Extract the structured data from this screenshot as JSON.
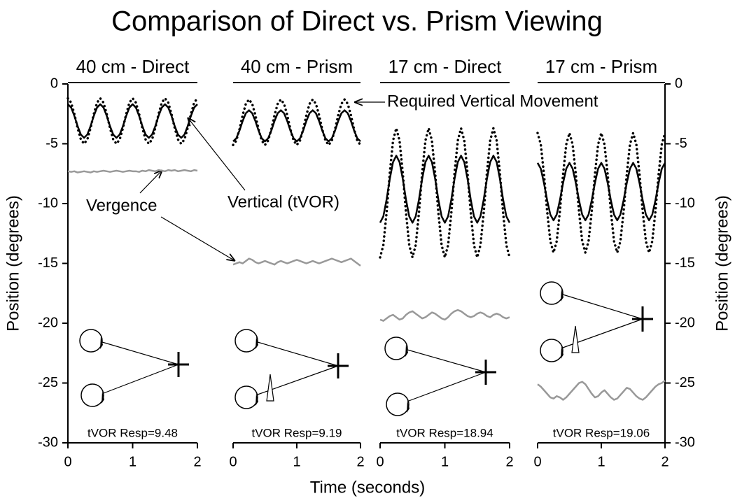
{
  "title": "Comparison of Direct vs. Prism Viewing",
  "xlabel": "Time (seconds)",
  "annotations": [
    "Required Vertical Movement",
    "Vertical (tVOR)",
    "Vergence"
  ],
  "chart_data": [
    {
      "type": "line",
      "title": "40 cm - Direct",
      "ylabel": "Position (degrees)",
      "yaxis": "left",
      "xlim": [
        0,
        2
      ],
      "xticks": [
        0,
        1,
        2
      ],
      "ylim": [
        -30,
        0
      ],
      "yticks": [
        0,
        -5,
        -10,
        -15,
        -20,
        -25,
        -30
      ],
      "annotation": "tVOR Resp=9.48",
      "x": [
        0,
        0.05,
        0.1,
        0.15,
        0.2,
        0.25,
        0.3,
        0.35,
        0.4,
        0.45,
        0.5,
        0.55,
        0.6,
        0.65,
        0.7,
        0.75,
        0.8,
        0.85,
        0.9,
        0.95,
        1,
        1.05,
        1.1,
        1.15,
        1.2,
        1.25,
        1.3,
        1.35,
        1.4,
        1.45,
        1.5,
        1.55,
        1.6,
        1.65,
        1.7,
        1.75,
        1.8,
        1.85,
        1.9,
        1.95,
        2
      ],
      "series": [
        {
          "color": "#000000",
          "style": "solid",
          "values": [
            -1.7,
            -1.97,
            -2.67,
            -3.53,
            -4.23,
            -4.5,
            -4.23,
            -3.53,
            -2.67,
            -1.97,
            -1.7,
            -1.97,
            -2.67,
            -3.53,
            -4.23,
            -4.5,
            -4.23,
            -3.53,
            -2.67,
            -1.97,
            -1.7,
            -1.97,
            -2.67,
            -3.53,
            -4.23,
            -4.5,
            -4.23,
            -3.53,
            -2.67,
            -1.97,
            -1.7,
            -1.97,
            -2.67,
            -3.53,
            -4.23,
            -4.5,
            -4.23,
            -3.53,
            -2.67,
            -1.97,
            -1.7
          ]
        },
        {
          "color": "#000000",
          "style": "dotted",
          "values": [
            -1.2,
            -1.56,
            -2.51,
            -3.69,
            -4.64,
            -5,
            -4.64,
            -3.69,
            -2.51,
            -1.56,
            -1.2,
            -1.56,
            -2.51,
            -3.69,
            -4.64,
            -5,
            -4.64,
            -3.69,
            -2.51,
            -1.56,
            -1.2,
            -1.56,
            -2.51,
            -3.69,
            -4.64,
            -5,
            -4.64,
            -3.69,
            -2.51,
            -1.56,
            -1.2,
            -1.56,
            -2.51,
            -3.69,
            -4.64,
            -5,
            -4.64,
            -3.69,
            -2.51,
            -1.56,
            -1.2
          ]
        },
        {
          "color": "#999999",
          "style": "solid",
          "values": [
            -7.3,
            -7.35,
            -7.3,
            -7.4,
            -7.35,
            -7.3,
            -7.35,
            -7.4,
            -7.3,
            -7.35,
            -7.3,
            -7.25,
            -7.3,
            -7.35,
            -7.3,
            -7.25,
            -7.3,
            -7.35,
            -7.3,
            -7.25,
            -7.3,
            -7.3,
            -7.35,
            -7.25,
            -7.3,
            -7.2,
            -7.25,
            -7.3,
            -7.2,
            -7.25,
            -7.3,
            -7.2,
            -7.25,
            -7.2,
            -7.3,
            -7.25,
            -7.2,
            -7.25,
            -7.3,
            -7.2,
            -7.25
          ]
        }
      ]
    },
    {
      "type": "line",
      "title": "40 cm - Prism",
      "xlim": [
        0,
        2
      ],
      "xticks": [
        0,
        1,
        2
      ],
      "ylim": [
        -30,
        0
      ],
      "annotation": "tVOR Resp=9.19",
      "x": [
        0,
        0.05,
        0.1,
        0.15,
        0.2,
        0.25,
        0.3,
        0.35,
        0.4,
        0.45,
        0.5,
        0.55,
        0.6,
        0.65,
        0.7,
        0.75,
        0.8,
        0.85,
        0.9,
        0.95,
        1,
        1.05,
        1.1,
        1.15,
        1.2,
        1.25,
        1.3,
        1.35,
        1.4,
        1.45,
        1.5,
        1.55,
        1.6,
        1.65,
        1.7,
        1.75,
        1.8,
        1.85,
        1.9,
        1.95,
        2
      ],
      "series": [
        {
          "color": "#000000",
          "style": "solid",
          "values": [
            -4.8,
            -4.55,
            -3.9,
            -3.1,
            -2.45,
            -2.2,
            -2.45,
            -3.1,
            -3.9,
            -4.55,
            -4.8,
            -4.55,
            -3.9,
            -3.1,
            -2.45,
            -2.2,
            -2.45,
            -3.1,
            -3.9,
            -4.55,
            -4.8,
            -4.55,
            -3.9,
            -3.1,
            -2.45,
            -2.2,
            -2.45,
            -3.1,
            -3.9,
            -4.55,
            -4.8,
            -4.55,
            -3.9,
            -3.1,
            -2.45,
            -2.2,
            -2.45,
            -3.1,
            -3.9,
            -4.55,
            -4.8
          ]
        },
        {
          "color": "#000000",
          "style": "dotted",
          "values": [
            -5.1,
            -4.74,
            -3.79,
            -2.61,
            -1.66,
            -1.3,
            -1.66,
            -2.61,
            -3.79,
            -4.74,
            -5.1,
            -4.74,
            -3.79,
            -2.61,
            -1.66,
            -1.3,
            -1.66,
            -2.61,
            -3.79,
            -4.74,
            -5.1,
            -4.74,
            -3.79,
            -2.61,
            -1.66,
            -1.3,
            -1.66,
            -2.61,
            -3.79,
            -4.74,
            -5.1,
            -4.74,
            -3.79,
            -2.61,
            -1.66,
            -1.3,
            -1.66,
            -2.61,
            -3.79,
            -4.74,
            -5.1
          ]
        },
        {
          "color": "#999999",
          "style": "solid",
          "values": [
            -15.1,
            -15,
            -14.9,
            -15,
            -14.8,
            -14.6,
            -14.7,
            -14.9,
            -15,
            -14.9,
            -14.8,
            -14.9,
            -15,
            -15.1,
            -14.9,
            -14.8,
            -14.9,
            -15,
            -14.9,
            -14.8,
            -14.7,
            -14.8,
            -14.9,
            -15,
            -14.9,
            -14.8,
            -14.9,
            -15,
            -14.9,
            -14.8,
            -14.7,
            -14.6,
            -14.7,
            -14.8,
            -14.9,
            -14.8,
            -14.7,
            -14.6,
            -14.8,
            -15,
            -15.2
          ]
        }
      ]
    },
    {
      "type": "line",
      "title": "17 cm - Direct",
      "xlim": [
        0,
        2
      ],
      "xticks": [
        0,
        1,
        2
      ],
      "ylim": [
        -30,
        0
      ],
      "annotation": "tVOR Resp=18.94",
      "x": [
        0,
        0.05,
        0.1,
        0.15,
        0.2,
        0.25,
        0.3,
        0.35,
        0.4,
        0.45,
        0.5,
        0.55,
        0.6,
        0.65,
        0.7,
        0.75,
        0.8,
        0.85,
        0.9,
        0.95,
        1,
        1.05,
        1.1,
        1.15,
        1.2,
        1.25,
        1.3,
        1.35,
        1.4,
        1.45,
        1.5,
        1.55,
        1.6,
        1.65,
        1.7,
        1.75,
        1.8,
        1.85,
        1.9,
        1.95,
        2
      ],
      "series": [
        {
          "color": "#000000",
          "style": "solid",
          "values": [
            -11.6,
            -11.07,
            -9.67,
            -7.93,
            -6.53,
            -6,
            -6.53,
            -7.93,
            -9.67,
            -11.07,
            -11.6,
            -11.07,
            -9.67,
            -7.93,
            -6.53,
            -6,
            -6.53,
            -7.93,
            -9.67,
            -11.07,
            -11.6,
            -11.07,
            -9.67,
            -7.93,
            -6.53,
            -6,
            -6.53,
            -7.93,
            -9.67,
            -11.07,
            -11.6,
            -11.07,
            -9.67,
            -7.93,
            -6.53,
            -6,
            -6.53,
            -7.93,
            -9.67,
            -11.07,
            -11.6
          ]
        },
        {
          "color": "#000000",
          "style": "dotted",
          "values": [
            -14.5,
            -13.47,
            -10.77,
            -7.43,
            -4.73,
            -3.7,
            -4.73,
            -7.43,
            -10.77,
            -13.47,
            -14.5,
            -13.47,
            -10.77,
            -7.43,
            -4.73,
            -3.7,
            -4.73,
            -7.43,
            -10.77,
            -13.47,
            -14.5,
            -13.47,
            -10.77,
            -7.43,
            -4.73,
            -3.7,
            -4.73,
            -7.43,
            -10.77,
            -13.47,
            -14.5,
            -13.47,
            -10.77,
            -7.43,
            -4.73,
            -3.7,
            -4.73,
            -7.43,
            -10.77,
            -13.47,
            -14.5
          ]
        },
        {
          "color": "#999999",
          "style": "solid",
          "values": [
            -19.7,
            -19.8,
            -19.6,
            -19.4,
            -19.3,
            -19.5,
            -19.7,
            -19.6,
            -19.3,
            -19.1,
            -19,
            -19.2,
            -19.4,
            -19.6,
            -19.5,
            -19.3,
            -19.1,
            -19.2,
            -19.4,
            -19.6,
            -19.7,
            -19.5,
            -19.2,
            -19,
            -18.9,
            -19,
            -19.2,
            -19.4,
            -19.5,
            -19.4,
            -19.2,
            -19.1,
            -19.2,
            -19.4,
            -19.5,
            -19.3,
            -19.2,
            -19.3,
            -19.5,
            -19.6,
            -19.5
          ]
        }
      ]
    },
    {
      "type": "line",
      "title": "17 cm - Prism",
      "ylabel": "Position (degrees)",
      "yaxis": "right",
      "xlim": [
        0,
        2
      ],
      "xticks": [
        0,
        1,
        2
      ],
      "ylim": [
        -30,
        0
      ],
      "yticks": [
        0,
        -5,
        -10,
        -15,
        -20,
        -25,
        -30
      ],
      "annotation": "tVOR Resp=19.06",
      "x": [
        0,
        0.05,
        0.1,
        0.15,
        0.2,
        0.25,
        0.3,
        0.35,
        0.4,
        0.45,
        0.5,
        0.55,
        0.6,
        0.65,
        0.7,
        0.75,
        0.8,
        0.85,
        0.9,
        0.95,
        1,
        1.05,
        1.1,
        1.15,
        1.2,
        1.25,
        1.3,
        1.35,
        1.4,
        1.45,
        1.5,
        1.55,
        1.6,
        1.65,
        1.7,
        1.75,
        1.8,
        1.85,
        1.9,
        1.95,
        2
      ],
      "series": [
        {
          "color": "#000000",
          "style": "solid",
          "values": [
            -6.6,
            -7.08,
            -8.28,
            -9.72,
            -10.92,
            -11.4,
            -10.92,
            -9.72,
            -8.28,
            -7.08,
            -6.6,
            -7.08,
            -8.28,
            -9.72,
            -10.92,
            -11.4,
            -10.92,
            -9.72,
            -8.28,
            -7.08,
            -6.6,
            -7.08,
            -8.28,
            -9.72,
            -10.92,
            -11.4,
            -10.92,
            -9.72,
            -8.28,
            -7.08,
            -6.6,
            -7.08,
            -8.28,
            -9.72,
            -10.92,
            -11.4,
            -10.92,
            -9.72,
            -8.28,
            -7.08,
            -6.6
          ]
        },
        {
          "color": "#000000",
          "style": "dotted",
          "values": [
            -4.1,
            -5.05,
            -7.55,
            -10.65,
            -13.15,
            -14.1,
            -13.15,
            -10.65,
            -7.55,
            -5.05,
            -4.1,
            -5.05,
            -7.55,
            -10.65,
            -13.15,
            -14.1,
            -13.15,
            -10.65,
            -7.55,
            -5.05,
            -4.1,
            -5.05,
            -7.55,
            -10.65,
            -13.15,
            -14.1,
            -13.15,
            -10.65,
            -7.55,
            -5.05,
            -4.1,
            -5.05,
            -7.55,
            -10.65,
            -13.15,
            -14.1,
            -13.15,
            -10.65,
            -7.55,
            -5.05,
            -4.1
          ]
        },
        {
          "color": "#999999",
          "style": "solid",
          "values": [
            -25.1,
            -25.3,
            -25.6,
            -25.9,
            -26.2,
            -26.3,
            -26.1,
            -26.2,
            -26.4,
            -26.2,
            -25.9,
            -25.6,
            -25.3,
            -25,
            -24.9,
            -25.1,
            -25.5,
            -25.9,
            -26.2,
            -26.1,
            -25.8,
            -25.6,
            -25.9,
            -26.2,
            -26.4,
            -26.3,
            -26,
            -25.7,
            -25.4,
            -25.5,
            -25.8,
            -26.1,
            -26.3,
            -26.4,
            -26.2,
            -25.9,
            -25.6,
            -25.3,
            -25.1,
            -25,
            -24.8
          ]
        }
      ]
    }
  ]
}
